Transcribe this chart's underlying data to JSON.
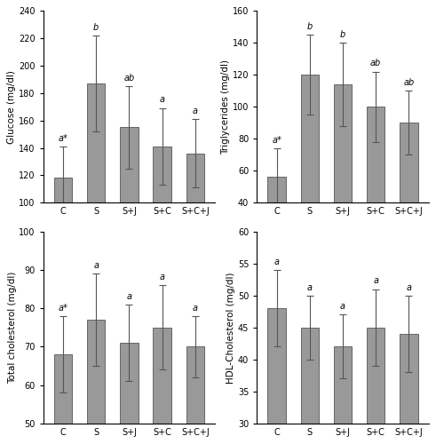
{
  "categories": [
    "C",
    "S",
    "S+J",
    "S+C",
    "S+C+J"
  ],
  "glucose": {
    "values": [
      118,
      187,
      155,
      141,
      136
    ],
    "errors": [
      23,
      35,
      30,
      28,
      25
    ],
    "labels": [
      "a*",
      "b",
      "ab",
      "a",
      "a"
    ],
    "ylabel": "Glucose (mg/dl)",
    "ylim": [
      100,
      240
    ],
    "yticks": [
      100,
      120,
      140,
      160,
      180,
      200,
      220,
      240
    ]
  },
  "triglycerides": {
    "values": [
      56,
      120,
      114,
      100,
      90
    ],
    "errors": [
      18,
      25,
      26,
      22,
      20
    ],
    "labels": [
      "a*",
      "b",
      "b",
      "ab",
      "ab"
    ],
    "ylabel": "Triglycerides (mg/dl)",
    "ylim": [
      40,
      160
    ],
    "yticks": [
      40,
      60,
      80,
      100,
      120,
      140,
      160
    ]
  },
  "total_cholesterol": {
    "values": [
      68,
      77,
      71,
      75,
      70
    ],
    "errors": [
      10,
      12,
      10,
      11,
      8
    ],
    "labels": [
      "a*",
      "a",
      "a",
      "a",
      "a"
    ],
    "ylabel": "Total cholesterol (mg/dl)",
    "ylim": [
      50,
      100
    ],
    "yticks": [
      50,
      60,
      70,
      80,
      90,
      100
    ]
  },
  "hdl_cholesterol": {
    "values": [
      48,
      45,
      42,
      45,
      44
    ],
    "errors": [
      6,
      5,
      5,
      6,
      6
    ],
    "labels": [
      "a",
      "a",
      "a",
      "a",
      "a"
    ],
    "ylabel": "HDL-Cholesterol (mg/dl)",
    "ylim": [
      30,
      60
    ],
    "yticks": [
      30,
      35,
      40,
      45,
      50,
      55,
      60
    ]
  },
  "bar_color": "#999999",
  "bar_edgecolor": "#555555",
  "bar_width": 0.55,
  "capsize": 3,
  "error_color": "#555555",
  "error_lw": 0.8,
  "label_fontsize": 7.0,
  "tick_fontsize": 7.0,
  "ylabel_fontsize": 7.5
}
